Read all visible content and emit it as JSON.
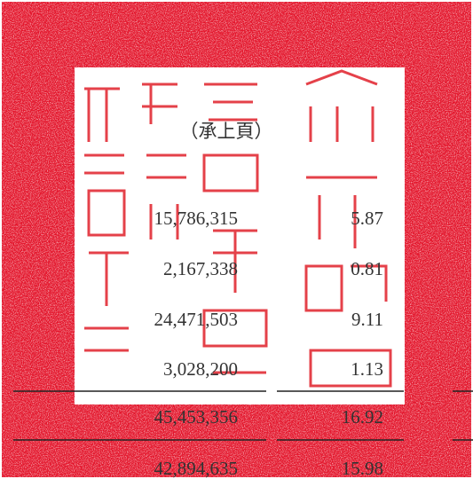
{
  "header": "（承上頁）",
  "rows": [
    [
      "15,786,315",
      "5.87"
    ],
    [
      "2,167,338",
      "0.81"
    ],
    [
      "24,471,503",
      "9.11"
    ],
    [
      "3,028,200",
      "1.13"
    ],
    [
      "45,453,356",
      "16.92"
    ],
    [
      "42,894,635",
      "15.98"
    ]
  ]
}
